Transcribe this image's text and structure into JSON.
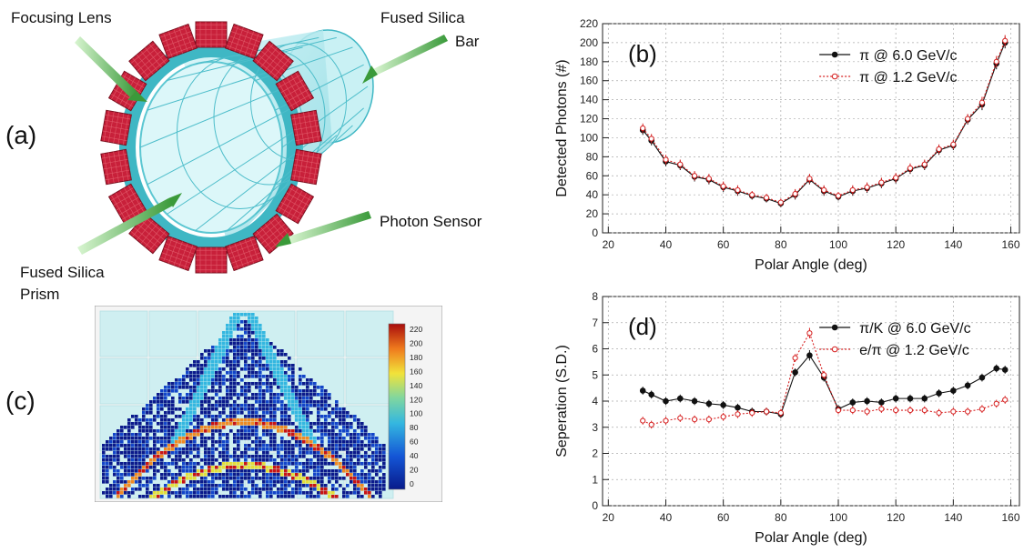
{
  "panel_a": {
    "tag": "(a)",
    "labels": {
      "focusing_lens": "Focusing Lens",
      "fused_silica_bar_1": "Fused Silica",
      "fused_silica_bar_2": "Bar",
      "photon_sensor": "Photon Sensor",
      "fused_silica_prism_1": "Fused Silica",
      "fused_silica_prism_2": "Prism"
    },
    "colors": {
      "barrel": "#9fe3ea",
      "barrel_edge": "#3fb7c4",
      "sensor": "#c8203a",
      "arrow": "#3a9a3a"
    }
  },
  "panel_c": {
    "tag": "(c)",
    "colorbar_ticks": [
      "220",
      "200",
      "180",
      "160",
      "140",
      "120",
      "100",
      "80",
      "60",
      "40",
      "20",
      "0"
    ],
    "colors": {
      "background": "#cfeff1",
      "low": "#0b1a8c",
      "mid": "#34b7e0",
      "high": "#c81414"
    }
  },
  "chart_data": [
    {
      "id": "b",
      "tag": "(b)",
      "type": "line",
      "xlabel": "Polar Angle (deg)",
      "ylabel": "Detected Photons (#)",
      "xlim": [
        18,
        163
      ],
      "ylim": [
        0,
        220
      ],
      "xticks": [
        20,
        40,
        60,
        80,
        100,
        120,
        140,
        160
      ],
      "yticks": [
        0,
        20,
        40,
        60,
        80,
        100,
        120,
        140,
        160,
        180,
        200,
        220
      ],
      "grid": true,
      "legend_position": "top-right",
      "series": [
        {
          "name": "π @ 6.0 GeV/c",
          "color": "#111111",
          "style": "solid",
          "marker": "filled-circle",
          "x": [
            32,
            35,
            40,
            45,
            50,
            55,
            60,
            65,
            70,
            75,
            80,
            85,
            90,
            95,
            100,
            105,
            110,
            115,
            120,
            125,
            130,
            135,
            140,
            145,
            150,
            155,
            158
          ],
          "y": [
            108,
            97,
            75,
            71,
            59,
            56,
            48,
            44,
            39,
            36,
            31,
            40,
            56,
            44,
            38,
            44,
            47,
            52,
            57,
            67,
            71,
            87,
            92,
            119,
            135,
            178,
            200
          ],
          "err": [
            5,
            5,
            5,
            5,
            5,
            5,
            5,
            5,
            4,
            4,
            4,
            5,
            5,
            5,
            4,
            5,
            5,
            5,
            5,
            5,
            5,
            5,
            5,
            5,
            6,
            6,
            6
          ]
        },
        {
          "name": "π @ 1.2 GeV/c",
          "color": "#d62020",
          "style": "dotted",
          "marker": "open-circle",
          "x": [
            32,
            35,
            40,
            45,
            50,
            55,
            60,
            65,
            70,
            75,
            80,
            85,
            90,
            95,
            100,
            105,
            110,
            115,
            120,
            125,
            130,
            135,
            140,
            145,
            150,
            155,
            158
          ],
          "y": [
            110,
            99,
            77,
            72,
            60,
            57,
            49,
            45,
            40,
            37,
            32,
            41,
            57,
            45,
            39,
            45,
            48,
            53,
            58,
            68,
            72,
            88,
            93,
            120,
            137,
            180,
            202
          ],
          "err": [
            5,
            5,
            5,
            5,
            5,
            5,
            5,
            5,
            4,
            4,
            4,
            5,
            5,
            5,
            4,
            5,
            5,
            5,
            5,
            5,
            5,
            5,
            5,
            5,
            6,
            6,
            6
          ]
        }
      ]
    },
    {
      "id": "d",
      "tag": "(d)",
      "type": "line",
      "xlabel": "Polar Angle (deg)",
      "ylabel": "Seperation (S.D.)",
      "xlim": [
        18,
        163
      ],
      "ylim": [
        0,
        8
      ],
      "xticks": [
        20,
        40,
        60,
        80,
        100,
        120,
        140,
        160
      ],
      "yticks": [
        0,
        1,
        2,
        3,
        4,
        5,
        6,
        7,
        8
      ],
      "grid": true,
      "legend_position": "top-right",
      "series": [
        {
          "name": "π/K @ 6.0 GeV/c",
          "color": "#111111",
          "style": "solid",
          "marker": "filled-circle",
          "x": [
            32,
            35,
            40,
            45,
            50,
            55,
            60,
            65,
            70,
            75,
            80,
            85,
            90,
            95,
            100,
            105,
            110,
            115,
            120,
            125,
            130,
            135,
            140,
            145,
            150,
            155,
            158
          ],
          "y": [
            4.4,
            4.25,
            4.0,
            4.1,
            4.0,
            3.9,
            3.85,
            3.75,
            3.6,
            3.6,
            3.5,
            5.1,
            5.75,
            4.9,
            3.7,
            3.95,
            4.0,
            3.95,
            4.1,
            4.1,
            4.1,
            4.3,
            4.4,
            4.6,
            4.9,
            5.25,
            5.2
          ],
          "err": [
            0.15,
            0.15,
            0.15,
            0.15,
            0.15,
            0.15,
            0.15,
            0.15,
            0.15,
            0.15,
            0.15,
            0.15,
            0.2,
            0.15,
            0.15,
            0.15,
            0.15,
            0.15,
            0.15,
            0.15,
            0.15,
            0.15,
            0.15,
            0.15,
            0.15,
            0.15,
            0.15
          ]
        },
        {
          "name": "e/π @ 1.2 GeV/c",
          "color": "#d62020",
          "style": "dotted",
          "marker": "open-circle",
          "x": [
            32,
            35,
            40,
            45,
            50,
            55,
            60,
            65,
            70,
            75,
            80,
            85,
            90,
            95,
            100,
            105,
            110,
            115,
            120,
            125,
            130,
            135,
            140,
            145,
            150,
            155,
            158
          ],
          "y": [
            3.25,
            3.1,
            3.25,
            3.35,
            3.3,
            3.3,
            3.4,
            3.5,
            3.55,
            3.6,
            3.55,
            5.65,
            6.6,
            5.0,
            3.65,
            3.65,
            3.6,
            3.7,
            3.65,
            3.65,
            3.65,
            3.55,
            3.6,
            3.6,
            3.7,
            3.9,
            4.05
          ],
          "err": [
            0.15,
            0.15,
            0.15,
            0.15,
            0.15,
            0.15,
            0.15,
            0.15,
            0.15,
            0.15,
            0.15,
            0.15,
            0.2,
            0.15,
            0.15,
            0.15,
            0.15,
            0.15,
            0.15,
            0.15,
            0.15,
            0.15,
            0.15,
            0.15,
            0.15,
            0.15,
            0.15
          ]
        }
      ]
    }
  ]
}
